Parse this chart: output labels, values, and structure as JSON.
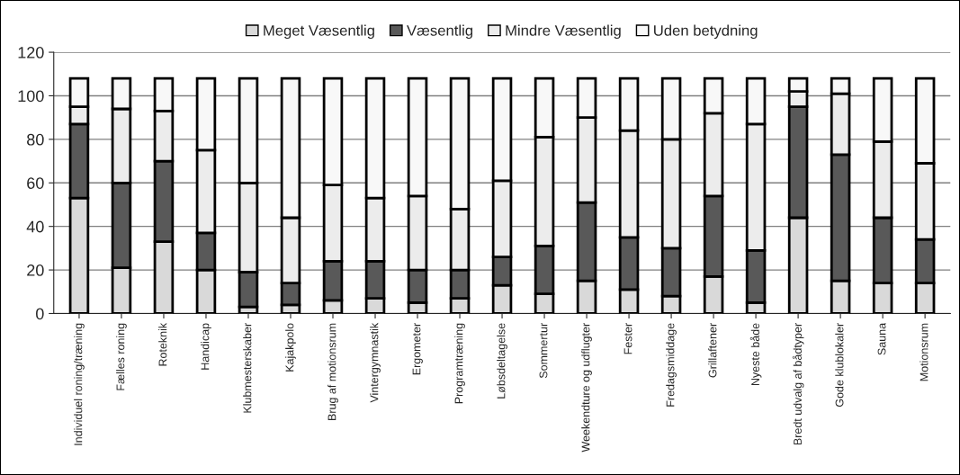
{
  "chart_data": {
    "type": "bar",
    "stacked": true,
    "categories": [
      "Individuel roning/træning",
      "Fælles roning",
      "Roteknik",
      "Handicap",
      "Klubmesterskaber",
      "Kajakpolo",
      "Brug af motionsrum",
      "Vintergymnastik",
      "Ergometer",
      "Programtræning",
      "Løbsdeltagelse",
      "Sommertur",
      "Weekendture og udflugter",
      "Fester",
      "Fredagsmiddage",
      "Grillaftener",
      "Nyeste både",
      "Bredt udvalg af bådtyper",
      "Gode klublokaler",
      "Sauna",
      "Motionsrum"
    ],
    "series": [
      {
        "name": "Meget Væsentlig",
        "color": "#d9d9d9",
        "values": [
          53,
          21,
          33,
          20,
          3,
          4,
          6,
          7,
          5,
          7,
          13,
          9,
          15,
          11,
          8,
          17,
          5,
          44,
          15,
          14,
          14
        ]
      },
      {
        "name": "Væsentlig",
        "color": "#595959",
        "values": [
          34,
          39,
          37,
          17,
          16,
          10,
          18,
          17,
          15,
          13,
          13,
          22,
          36,
          24,
          22,
          37,
          24,
          51,
          58,
          30,
          20
        ]
      },
      {
        "name": "Mindre Væsentlig",
        "color": "#ececec",
        "values": [
          8,
          34,
          23,
          38,
          41,
          30,
          35,
          29,
          34,
          28,
          35,
          50,
          39,
          49,
          50,
          38,
          58,
          7,
          28,
          35,
          35
        ]
      },
      {
        "name": "Uden betydning",
        "color": "#f8f8f8",
        "values": [
          13,
          14,
          15,
          33,
          48,
          64,
          49,
          55,
          54,
          60,
          47,
          27,
          18,
          24,
          28,
          16,
          21,
          6,
          7,
          29,
          39
        ]
      }
    ],
    "ylim": [
      0,
      120
    ],
    "yticks": [
      0,
      20,
      40,
      60,
      80,
      100,
      120
    ],
    "grid": "y",
    "legend": "top"
  }
}
